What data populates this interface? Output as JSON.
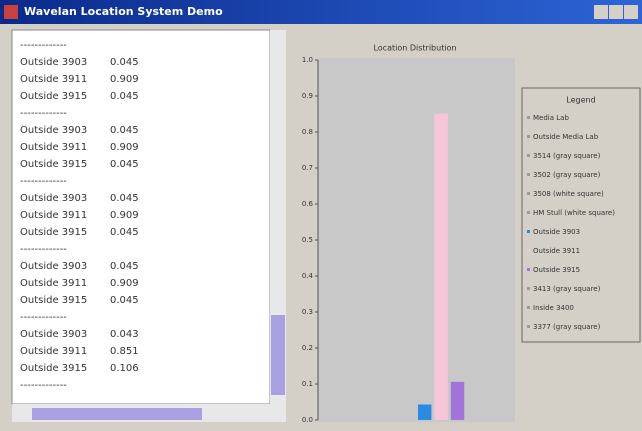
{
  "window": {
    "title": "Wavelan Location System Demo"
  },
  "log": {
    "separator": "-------------",
    "groups": [
      [
        {
          "location": "Outside 3903",
          "value": 0.045
        },
        {
          "location": "Outside 3911",
          "value": 0.909
        },
        {
          "location": "Outside 3915",
          "value": 0.045
        }
      ],
      [
        {
          "location": "Outside 3903",
          "value": 0.045
        },
        {
          "location": "Outside 3911",
          "value": 0.909
        },
        {
          "location": "Outside 3915",
          "value": 0.045
        }
      ],
      [
        {
          "location": "Outside 3903",
          "value": 0.045
        },
        {
          "location": "Outside 3911",
          "value": 0.909
        },
        {
          "location": "Outside 3915",
          "value": 0.045
        }
      ],
      [
        {
          "location": "Outside 3903",
          "value": 0.045
        },
        {
          "location": "Outside 3911",
          "value": 0.909
        },
        {
          "location": "Outside 3915",
          "value": 0.045
        }
      ],
      [
        {
          "location": "Outside 3903",
          "value": 0.043
        },
        {
          "location": "Outside 3911",
          "value": 0.851
        },
        {
          "location": "Outside 3915",
          "value": 0.106
        }
      ]
    ]
  },
  "chart_data": {
    "type": "bar",
    "title": "Location Distribution",
    "legend_title": "Legend",
    "ylim": [
      0,
      1
    ],
    "yticks": [
      {
        "value": 0,
        "label": "0.0"
      },
      0.1,
      0.2,
      0.3,
      0.4,
      0.5,
      0.6,
      0.7,
      0.8,
      0.9,
      {
        "value": 1,
        "label": "1.0"
      }
    ],
    "series": [
      {
        "name": "Media Lab",
        "color": "#9a9a9a",
        "values": [
          0
        ]
      },
      {
        "name": "Outside Media Lab",
        "color": "#9a9a9a",
        "values": [
          0
        ]
      },
      {
        "name": "3514 (gray square)",
        "color": "#9a9a9a",
        "values": [
          0
        ]
      },
      {
        "name": "3502 (gray square)",
        "color": "#9a9a9a",
        "values": [
          0
        ]
      },
      {
        "name": "3508 (white square)",
        "color": "#9a9a9a",
        "values": [
          0
        ]
      },
      {
        "name": "HM Stull (white square)",
        "color": "#9a9a9a",
        "values": [
          0
        ]
      },
      {
        "name": "Outside 3903",
        "color": "#2b8be3",
        "values": [
          0.043
        ]
      },
      {
        "name": "Outside 3911",
        "color": "#f6c6d8",
        "values": [
          0.851
        ]
      },
      {
        "name": "Outside 3915",
        "color": "#a274da",
        "values": [
          0.106
        ]
      },
      {
        "name": "3413 (gray square)",
        "color": "#9a9a9a",
        "values": [
          0
        ]
      },
      {
        "name": "Inside 3400",
        "color": "#9a9a9a",
        "values": [
          0
        ]
      },
      {
        "name": "3377 (gray square)",
        "color": "#9a9a9a",
        "values": [
          0
        ]
      }
    ]
  }
}
